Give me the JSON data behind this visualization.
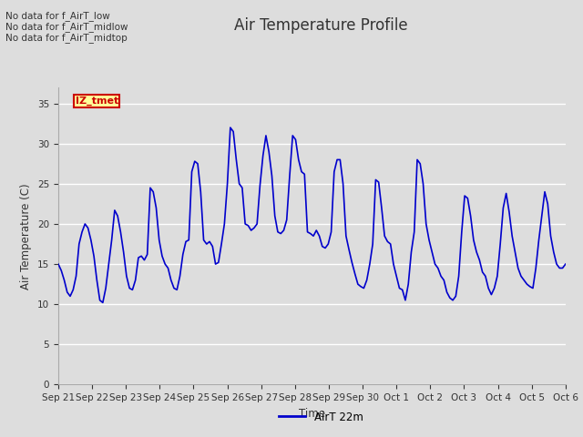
{
  "title": "Air Temperature Profile",
  "xlabel": "Time",
  "ylabel": "Air Temperature (C)",
  "legend_label": "AirT 22m",
  "line_color": "#0000cc",
  "line_width": 1.2,
  "ylim": [
    0,
    37
  ],
  "yticks": [
    0,
    5,
    10,
    15,
    20,
    25,
    30,
    35
  ],
  "fig_bg_color": "#dddddd",
  "plot_bg_color": "#dddddd",
  "grid_color": "#ffffff",
  "no_data_texts": [
    "No data for f_AirT_low",
    "No data for f_AirT_midlow",
    "No data for f_AirT_midtop"
  ],
  "tooltip_text": "IZ_tmet",
  "tooltip_bg": "#ffff99",
  "tooltip_border": "#cc0000",
  "x_tick_labels": [
    "Sep 21",
    "Sep 22",
    "Sep 23",
    "Sep 24",
    "Sep 25",
    "Sep 26",
    "Sep 27",
    "Sep 28",
    "Sep 29",
    "Sep 30",
    "Oct 1",
    "Oct 2",
    "Oct 3",
    "Oct 4",
    "Oct 5",
    "Oct 6"
  ],
  "temperature_values": [
    15.0,
    14.2,
    13.0,
    11.5,
    11.0,
    11.8,
    13.5,
    17.5,
    19.0,
    20.0,
    19.5,
    18.0,
    16.0,
    13.0,
    10.5,
    10.2,
    12.0,
    15.0,
    18.0,
    21.7,
    21.0,
    19.0,
    16.5,
    13.5,
    12.0,
    11.8,
    13.0,
    15.8,
    16.0,
    15.5,
    16.2,
    24.5,
    24.0,
    22.0,
    18.0,
    16.0,
    15.0,
    14.5,
    13.0,
    12.0,
    11.8,
    13.5,
    16.2,
    17.8,
    18.0,
    26.5,
    27.8,
    27.5,
    24.0,
    18.0,
    17.5,
    17.8,
    17.2,
    15.0,
    15.2,
    17.5,
    20.0,
    25.0,
    32.0,
    31.5,
    28.0,
    25.0,
    24.5,
    20.0,
    19.8,
    19.2,
    19.5,
    20.0,
    24.8,
    28.5,
    31.0,
    29.0,
    26.0,
    21.0,
    19.0,
    18.8,
    19.2,
    20.5,
    26.0,
    31.0,
    30.5,
    28.0,
    26.5,
    26.2,
    19.0,
    18.8,
    18.5,
    19.2,
    18.5,
    17.2,
    17.0,
    17.5,
    19.0,
    26.5,
    28.0,
    28.0,
    25.0,
    18.5,
    16.8,
    15.2,
    13.8,
    12.5,
    12.2,
    12.0,
    13.0,
    15.0,
    17.5,
    25.5,
    25.2,
    22.0,
    18.5,
    17.8,
    17.5,
    15.0,
    13.5,
    12.0,
    11.8,
    10.5,
    12.5,
    16.5,
    19.0,
    28.0,
    27.5,
    25.0,
    20.0,
    18.0,
    16.5,
    15.0,
    14.5,
    13.5,
    13.0,
    11.5,
    10.8,
    10.5,
    11.0,
    13.5,
    19.0,
    23.5,
    23.2,
    21.0,
    18.0,
    16.5,
    15.5,
    14.0,
    13.5,
    12.0,
    11.2,
    12.0,
    13.5,
    17.5,
    22.0,
    23.8,
    21.5,
    18.5,
    16.5,
    14.5,
    13.5,
    13.0,
    12.5,
    12.2,
    12.0,
    14.5,
    18.0,
    21.0,
    24.0,
    22.5,
    18.5,
    16.5,
    15.0,
    14.5,
    14.5,
    15.0
  ],
  "figsize": [
    6.4,
    4.8
  ],
  "dpi": 100,
  "title_fontsize": 12,
  "tick_fontsize": 7.5,
  "ylabel_fontsize": 8.5,
  "xlabel_fontsize": 8.5,
  "legend_fontsize": 8.5
}
